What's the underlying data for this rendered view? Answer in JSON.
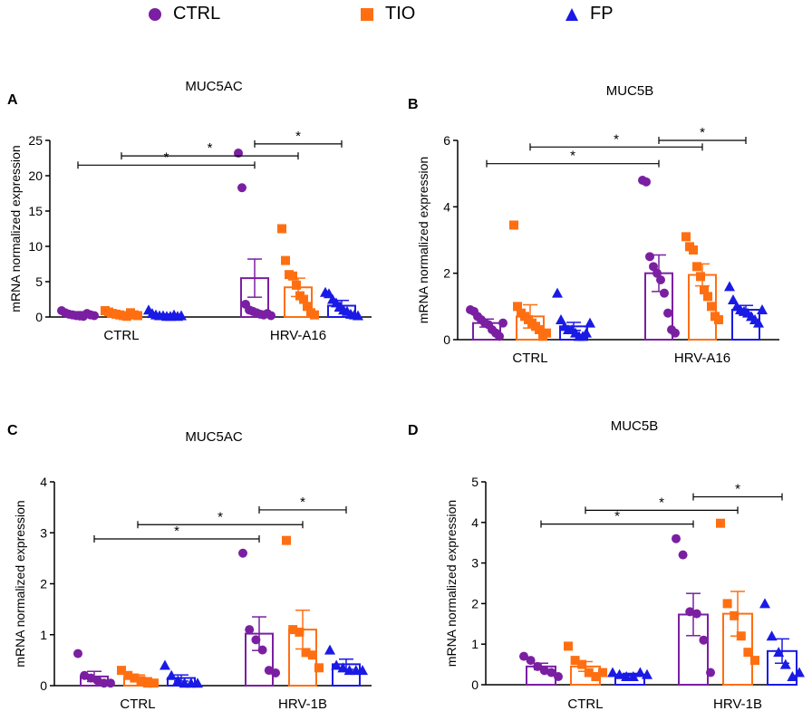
{
  "legend": [
    {
      "label": "CTRL",
      "color": "#7B1FA2",
      "marker": "circle"
    },
    {
      "label": "TIO",
      "color": "#FF6F12",
      "marker": "square"
    },
    {
      "label": "FP",
      "color": "#1A1AE6",
      "marker": "triangle"
    }
  ],
  "chart_data": [
    {
      "panel": "A",
      "type": "bar",
      "title": "MUC5AC",
      "ylabel": "mRNA normalized expression",
      "categories": [
        "CTRL",
        "HRV-A16"
      ],
      "ylim": [
        0,
        25
      ],
      "yticks": [
        0,
        5,
        10,
        15,
        20,
        25
      ],
      "series": [
        {
          "name": "CTRL",
          "means": [
            0.5,
            5.5
          ],
          "sem": [
            0.25,
            2.7
          ],
          "points": [
            [
              0.9,
              0.6,
              0.4,
              0.3,
              0.2,
              0.15,
              0.1,
              0.5,
              0.3,
              0.2
            ],
            [
              23.2,
              18.3,
              1.8,
              1.0,
              0.8,
              0.6,
              0.4,
              0.3,
              0.5,
              0.2
            ]
          ]
        },
        {
          "name": "TIO",
          "means": [
            0.5,
            4.2
          ],
          "sem": [
            0.2,
            1.3
          ],
          "points": [
            [
              0.9,
              0.7,
              0.5,
              0.4,
              0.3,
              0.2,
              0.1,
              0.6,
              0.3,
              0.2
            ],
            [
              12.5,
              8.0,
              6.0,
              5.8,
              4.5,
              3.0,
              2.5,
              1.5,
              0.6,
              0.3
            ]
          ]
        },
        {
          "name": "FP",
          "means": [
            0.3,
            1.6
          ],
          "sem": [
            0.12,
            0.75
          ],
          "points": [
            [
              1.0,
              0.5,
              0.3,
              0.2,
              0.2,
              0.1,
              0.1,
              0.3,
              0.1,
              0.2
            ],
            [
              3.5,
              3.3,
              2.5,
              2.0,
              1.5,
              1.0,
              0.8,
              0.4,
              0.3,
              0.2
            ]
          ]
        }
      ],
      "significance": [
        {
          "from": [
            0,
            0
          ],
          "to": [
            1,
            0
          ],
          "y": 21.5,
          "label": "*"
        },
        {
          "from": [
            0,
            1
          ],
          "to": [
            1,
            1
          ],
          "y": 22.8,
          "label": "*"
        },
        {
          "from": [
            1,
            0
          ],
          "to": [
            1,
            2
          ],
          "y": 24.5,
          "label": "*"
        }
      ]
    },
    {
      "panel": "B",
      "type": "bar",
      "title": "MUC5B",
      "ylabel": "mRNA normalized expression",
      "categories": [
        "CTRL",
        "HRV-A16"
      ],
      "ylim": [
        0,
        6
      ],
      "yticks": [
        0,
        2,
        4,
        6
      ],
      "series": [
        {
          "name": "CTRL",
          "means": [
            0.5,
            2.0
          ],
          "sem": [
            0.12,
            0.55
          ],
          "points": [
            [
              0.9,
              0.85,
              0.7,
              0.6,
              0.5,
              0.45,
              0.3,
              0.2,
              0.1,
              0.5
            ],
            [
              4.8,
              4.75,
              2.5,
              2.2,
              2.0,
              1.8,
              1.4,
              0.8,
              0.3,
              0.2
            ]
          ]
        },
        {
          "name": "TIO",
          "means": [
            0.7,
            1.95
          ],
          "sem": [
            0.35,
            0.33
          ],
          "points": [
            [
              3.45,
              1.0,
              0.8,
              0.7,
              0.6,
              0.5,
              0.4,
              0.3,
              0.1,
              0.2
            ],
            [
              3.1,
              2.8,
              2.7,
              2.2,
              1.9,
              1.5,
              1.3,
              1.0,
              0.7,
              0.6
            ]
          ]
        },
        {
          "name": "FP",
          "means": [
            0.4,
            0.9
          ],
          "sem": [
            0.12,
            0.13
          ],
          "points": [
            [
              1.4,
              0.6,
              0.4,
              0.3,
              0.3,
              0.2,
              0.1,
              0.1,
              0.2,
              0.5
            ],
            [
              1.6,
              1.2,
              1.0,
              0.9,
              0.85,
              0.8,
              0.7,
              0.6,
              0.5,
              0.9
            ]
          ]
        }
      ],
      "significance": [
        {
          "from": [
            0,
            0
          ],
          "to": [
            1,
            0
          ],
          "y": 5.3,
          "label": "*"
        },
        {
          "from": [
            0,
            1
          ],
          "to": [
            1,
            1
          ],
          "y": 5.8,
          "label": "*"
        },
        {
          "from": [
            1,
            0
          ],
          "to": [
            1,
            2
          ],
          "y": 6.0,
          "label": "*"
        }
      ]
    },
    {
      "panel": "C",
      "type": "bar",
      "title": "MUC5AC",
      "ylabel": "mRNA normalized expression",
      "categories": [
        "CTRL",
        "HRV-1B"
      ],
      "ylim": [
        0,
        4
      ],
      "yticks": [
        0,
        1,
        2,
        3,
        4
      ],
      "series": [
        {
          "name": "CTRL",
          "means": [
            0.18,
            1.02
          ],
          "sem": [
            0.1,
            0.33
          ],
          "points": [
            [
              0.63,
              0.2,
              0.15,
              0.1,
              0.05,
              0.05
            ],
            [
              2.6,
              1.1,
              0.9,
              0.7,
              0.3,
              0.25
            ]
          ]
        },
        {
          "name": "TIO",
          "means": [
            0.15,
            1.1
          ],
          "sem": [
            0.06,
            0.38
          ],
          "points": [
            [
              0.3,
              0.2,
              0.15,
              0.1,
              0.05,
              0.05
            ],
            [
              2.85,
              1.1,
              1.05,
              0.65,
              0.6,
              0.35
            ]
          ]
        },
        {
          "name": "FP",
          "means": [
            0.15,
            0.42
          ],
          "sem": [
            0.06,
            0.1
          ],
          "points": [
            [
              0.4,
              0.2,
              0.1,
              0.05,
              0.05,
              0.05
            ],
            [
              0.7,
              0.4,
              0.35,
              0.3,
              0.3,
              0.3
            ]
          ]
        }
      ],
      "significance": [
        {
          "from": [
            0,
            0
          ],
          "to": [
            1,
            0
          ],
          "y": 2.88,
          "label": "*"
        },
        {
          "from": [
            0,
            1
          ],
          "to": [
            1,
            1
          ],
          "y": 3.16,
          "label": "*"
        },
        {
          "from": [
            1,
            0
          ],
          "to": [
            1,
            2
          ],
          "y": 3.45,
          "label": "*"
        }
      ]
    },
    {
      "panel": "D",
      "type": "bar",
      "title": "MUC5B",
      "ylabel": "mRNA normalized expression",
      "categories": [
        "CTRL",
        "HRV-1B"
      ],
      "ylim": [
        0,
        5
      ],
      "yticks": [
        0,
        1,
        2,
        3,
        4,
        5
      ],
      "series": [
        {
          "name": "CTRL",
          "means": [
            0.45,
            1.73
          ],
          "sem": [
            0.08,
            0.52
          ],
          "points": [
            [
              0.7,
              0.6,
              0.45,
              0.35,
              0.3,
              0.2
            ],
            [
              3.6,
              3.2,
              1.8,
              1.75,
              1.1,
              0.3
            ]
          ]
        },
        {
          "name": "TIO",
          "means": [
            0.45,
            1.75
          ],
          "sem": [
            0.12,
            0.55
          ],
          "points": [
            [
              0.95,
              0.6,
              0.5,
              0.3,
              0.2,
              0.3
            ],
            [
              3.98,
              2.0,
              1.7,
              1.2,
              0.8,
              0.6
            ]
          ]
        },
        {
          "name": "FP",
          "means": [
            0.25,
            0.83
          ],
          "sem": [
            0.03,
            0.3
          ],
          "points": [
            [
              0.3,
              0.25,
              0.2,
              0.2,
              0.3,
              0.25
            ],
            [
              2.0,
              1.2,
              0.8,
              0.5,
              0.2,
              0.3
            ]
          ]
        }
      ],
      "significance": [
        {
          "from": [
            0,
            0
          ],
          "to": [
            1,
            0
          ],
          "y": 3.96,
          "label": "*"
        },
        {
          "from": [
            0,
            1
          ],
          "to": [
            1,
            1
          ],
          "y": 4.3,
          "label": "*"
        },
        {
          "from": [
            1,
            0
          ],
          "to": [
            1,
            2
          ],
          "y": 4.63,
          "label": "*"
        }
      ]
    }
  ]
}
